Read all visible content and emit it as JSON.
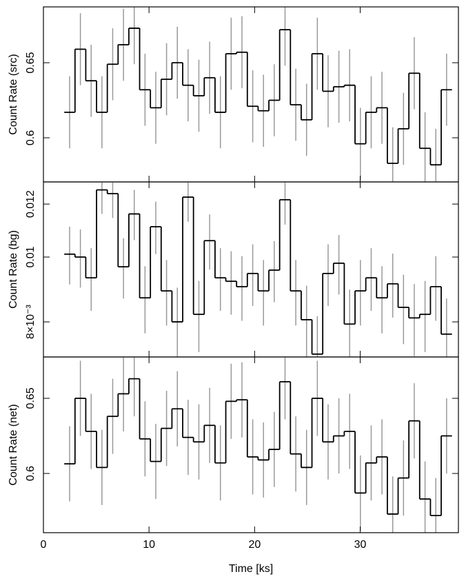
{
  "chart_data": [
    {
      "type": "step",
      "ylabel": "Count Rate (src)",
      "x": [
        2.48,
        3.5,
        4.52,
        5.54,
        6.56,
        7.58,
        8.6,
        9.62,
        10.64,
        11.66,
        12.68,
        13.7,
        14.72,
        15.74,
        16.76,
        17.78,
        18.8,
        19.82,
        20.84,
        21.86,
        22.88,
        23.9,
        24.92,
        25.94,
        26.96,
        27.98,
        29,
        30.02,
        31.04,
        32.06,
        33.08,
        34.1,
        35.12,
        36.14,
        37.16,
        38.18
      ],
      "values": [
        0.617,
        0.659,
        0.638,
        0.617,
        0.649,
        0.662,
        0.673,
        0.632,
        0.62,
        0.639,
        0.65,
        0.635,
        0.628,
        0.64,
        0.617,
        0.656,
        0.657,
        0.621,
        0.618,
        0.625,
        0.672,
        0.622,
        0.612,
        0.656,
        0.631,
        0.634,
        0.635,
        0.596,
        0.617,
        0.62,
        0.583,
        0.606,
        0.643,
        0.593,
        0.582,
        0.632
      ],
      "errors": [
        0.024,
        0.024,
        0.024,
        0.024,
        0.024,
        0.024,
        0.024,
        0.024,
        0.024,
        0.024,
        0.024,
        0.024,
        0.024,
        0.024,
        0.024,
        0.024,
        0.024,
        0.024,
        0.024,
        0.024,
        0.024,
        0.024,
        0.024,
        0.024,
        0.024,
        0.024,
        0.024,
        0.024,
        0.024,
        0.024,
        0.024,
        0.024,
        0.024,
        0.024,
        0.024,
        0.024
      ],
      "xlim": [
        0,
        39.3
      ],
      "ylim": [
        0.5706,
        0.6872
      ],
      "yticks": [
        0.6,
        0.65
      ],
      "ylog": false
    },
    {
      "type": "step",
      "ylabel": "Count Rate (bg)",
      "x": [
        2.48,
        3.5,
        4.52,
        5.54,
        6.56,
        7.58,
        8.6,
        9.62,
        10.64,
        11.66,
        12.68,
        13.7,
        14.72,
        15.74,
        16.76,
        17.78,
        18.8,
        19.82,
        20.84,
        21.86,
        22.88,
        23.9,
        24.92,
        25.94,
        26.96,
        27.98,
        29,
        30.02,
        31.04,
        32.06,
        33.08,
        34.1,
        35.12,
        36.14,
        37.16,
        38.18
      ],
      "values": [
        0.0101,
        0.01,
        0.00931,
        0.0126,
        0.01244,
        0.00967,
        0.0116,
        0.00869,
        0.0111,
        0.0089,
        0.008,
        0.01229,
        0.00821,
        0.01058,
        0.00931,
        0.0092,
        0.00903,
        0.00945,
        0.0089,
        0.00956,
        0.01218,
        0.0089,
        0.00806,
        0.00716,
        0.00945,
        0.00979,
        0.00794,
        0.0089,
        0.00931,
        0.00869,
        0.00912,
        0.00841,
        0.00811,
        0.00821,
        0.00903,
        0.00767
      ],
      "errors": [
        0.001,
        0.001,
        0.001,
        0.001,
        0.001,
        0.001,
        0.001,
        0.001,
        0.001,
        0.001,
        0.001,
        0.001,
        0.001,
        0.001,
        0.001,
        0.001,
        0.001,
        0.001,
        0.001,
        0.001,
        0.001,
        0.001,
        0.001,
        0.001,
        0.001,
        0.001,
        0.001,
        0.001,
        0.001,
        0.001,
        0.001,
        0.001,
        0.001,
        0.001,
        0.001,
        0.001
      ],
      "xlim": [
        0,
        39.3
      ],
      "ylim": [
        0.00709,
        0.01295
      ],
      "yticks": [
        {
          "value": 0.008,
          "label": "8×10⁻³"
        },
        0.01,
        0.012
      ],
      "ylog": true
    },
    {
      "type": "step",
      "ylabel": "Count Rate (net)",
      "xlabel": "Time [ks]",
      "x": [
        2.48,
        3.5,
        4.52,
        5.54,
        6.56,
        7.58,
        8.6,
        9.62,
        10.64,
        11.66,
        12.68,
        13.7,
        14.72,
        15.74,
        16.76,
        17.78,
        18.8,
        19.82,
        20.84,
        21.86,
        22.88,
        23.9,
        24.92,
        25.94,
        26.96,
        27.98,
        29,
        30.02,
        31.04,
        32.06,
        33.08,
        34.1,
        35.12,
        36.14,
        37.16,
        38.18
      ],
      "values": [
        0.6064,
        0.65,
        0.628,
        0.604,
        0.638,
        0.653,
        0.663,
        0.623,
        0.608,
        0.63,
        0.643,
        0.624,
        0.621,
        0.632,
        0.607,
        0.648,
        0.649,
        0.611,
        0.609,
        0.616,
        0.661,
        0.613,
        0.604,
        0.65,
        0.621,
        0.625,
        0.628,
        0.587,
        0.607,
        0.611,
        0.573,
        0.597,
        0.635,
        0.583,
        0.572,
        0.625
      ],
      "errors": [
        0.025,
        0.025,
        0.025,
        0.025,
        0.025,
        0.025,
        0.025,
        0.025,
        0.025,
        0.025,
        0.025,
        0.025,
        0.025,
        0.025,
        0.025,
        0.025,
        0.025,
        0.025,
        0.025,
        0.025,
        0.025,
        0.025,
        0.025,
        0.025,
        0.025,
        0.025,
        0.025,
        0.025,
        0.025,
        0.025,
        0.025,
        0.025,
        0.025,
        0.025,
        0.025,
        0.025
      ],
      "xlim": [
        0,
        39.3
      ],
      "ylim": [
        0.5606,
        0.6775
      ],
      "yticks": [
        0.6,
        0.65
      ],
      "xticks": [
        0,
        10,
        20,
        30
      ],
      "ylog": false
    }
  ]
}
